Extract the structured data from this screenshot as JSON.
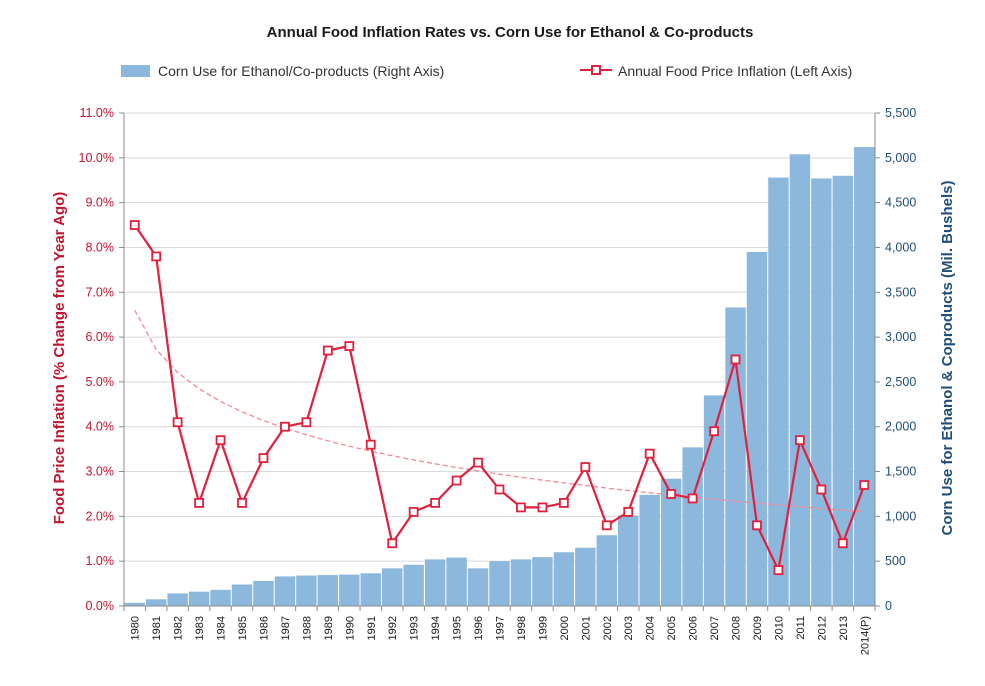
{
  "chart_data": {
    "type": "bar",
    "title": "Annual Food Inflation Rates vs. Corn Use for Ethanol & Co-products",
    "ylabel_left": "Food Price Inflation (% Change from Year Ago)",
    "ylabel_right": "Corn Use for Ethanol & Coproducts (Mil. Bushels)",
    "xlabel": "",
    "legend_position": "top",
    "grid": true,
    "categories": [
      "1980",
      "1981",
      "1982",
      "1983",
      "1984",
      "1985",
      "1986",
      "1987",
      "1988",
      "1989",
      "1990",
      "1991",
      "1992",
      "1993",
      "1994",
      "1995",
      "1996",
      "1997",
      "1998",
      "1999",
      "2000",
      "2001",
      "2002",
      "2003",
      "2004",
      "2005",
      "2006",
      "2007",
      "2008",
      "2009",
      "2010",
      "2011",
      "2012",
      "2013",
      "2014(P)"
    ],
    "left_ticks": [
      "0.0%",
      "1.0%",
      "2.0%",
      "3.0%",
      "4.0%",
      "5.0%",
      "6.0%",
      "7.0%",
      "8.0%",
      "9.0%",
      "10.0%",
      "11.0%"
    ],
    "right_ticks": [
      "0",
      "500",
      "1,000",
      "1,500",
      "2,000",
      "2,500",
      "3,000",
      "3,500",
      "4,000",
      "4,500",
      "5,000",
      "5,500"
    ],
    "ylim_left": [
      0,
      11
    ],
    "ylim_right": [
      0,
      5500
    ],
    "series": [
      {
        "name": "Corn Use for Ethanol/Co-products (Right Axis)",
        "type": "bar",
        "axis": "right",
        "color": "#8db8dd",
        "values": [
          35,
          75,
          140,
          160,
          180,
          240,
          280,
          330,
          340,
          345,
          350,
          365,
          420,
          460,
          520,
          540,
          420,
          500,
          520,
          545,
          600,
          650,
          790,
          1010,
          1240,
          1420,
          1770,
          2350,
          3330,
          3950,
          4780,
          5040,
          4770,
          4800,
          5120
        ]
      },
      {
        "name": "Annual Food Price Inflation (Left Axis)",
        "type": "line",
        "axis": "left",
        "color": "#e0203c",
        "values": [
          8.5,
          7.8,
          4.1,
          2.3,
          3.7,
          2.3,
          3.3,
          4.0,
          4.1,
          5.7,
          5.8,
          3.6,
          1.4,
          2.1,
          2.3,
          2.8,
          3.2,
          2.6,
          2.2,
          2.2,
          2.3,
          3.1,
          1.8,
          2.1,
          3.4,
          2.5,
          2.4,
          3.9,
          5.5,
          1.8,
          0.8,
          3.7,
          2.6,
          1.4,
          2.7
        ]
      }
    ],
    "trendline": {
      "type": "logarithmic",
      "axis": "left",
      "color": "#f08a98",
      "start_value": 6.6,
      "end_value": 2.1
    }
  }
}
